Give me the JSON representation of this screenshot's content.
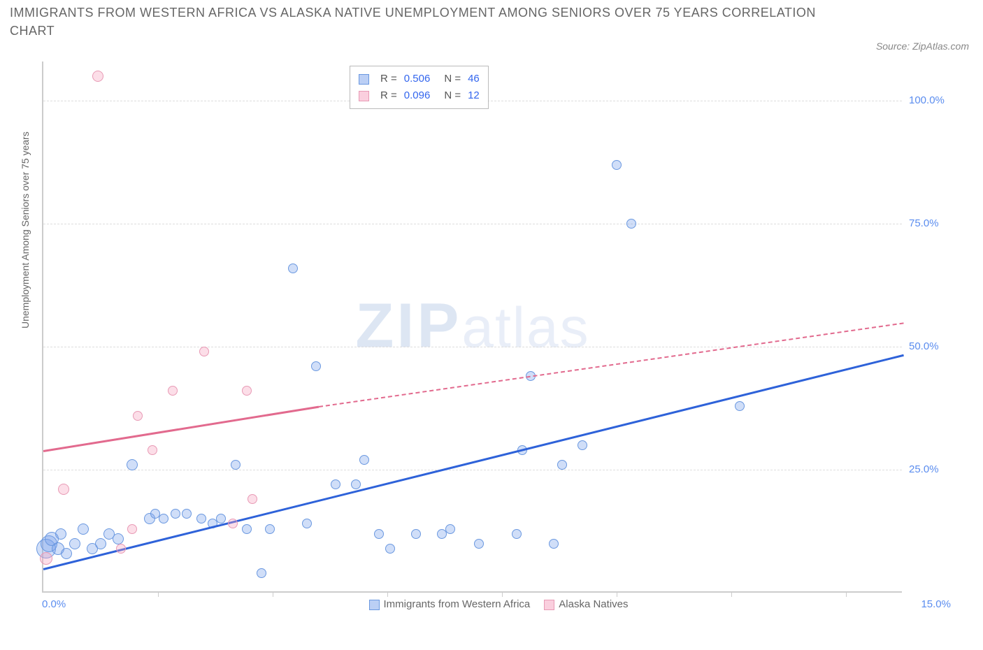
{
  "title_line1": "IMMIGRANTS FROM WESTERN AFRICA VS ALASKA NATIVE UNEMPLOYMENT AMONG SENIORS OVER 75 YEARS CORRELATION",
  "title_line2": "CHART",
  "source_text": "Source: ZipAtlas.com",
  "y_axis_label": "Unemployment Among Seniors over 75 years",
  "watermark_zip": "ZIP",
  "watermark_atlas": "atlas",
  "chart": {
    "type": "scatter",
    "xlim": [
      0,
      15
    ],
    "ylim": [
      0,
      108
    ],
    "y_ticks": [
      25,
      50,
      75,
      100
    ],
    "y_tick_labels": [
      "25.0%",
      "50.0%",
      "75.0%",
      "100.0%"
    ],
    "x_tick_positions": [
      2.0,
      4.0,
      6.0,
      8.0,
      10.0,
      12.0,
      14.0
    ],
    "x_left_label": "0.0%",
    "x_right_label": "15.0%",
    "background_color": "#ffffff",
    "grid_color": "#dddddd",
    "axis_color": "#cccccc",
    "watermark_color": "#e7ecf5",
    "series": [
      {
        "name": "Immigrants from Western Africa",
        "color_fill": "rgba(120,160,235,0.35)",
        "color_stroke": "#6a98e0",
        "trend_color": "#2e62d9",
        "R": "0.506",
        "N": "46",
        "trend": {
          "x1": 0.0,
          "y1": 5.0,
          "x2": 15.0,
          "y2": 48.5,
          "dashed": false
        },
        "points": [
          {
            "x": 0.05,
            "y": 9,
            "r": 14
          },
          {
            "x": 0.1,
            "y": 10,
            "r": 12
          },
          {
            "x": 0.15,
            "y": 11,
            "r": 10
          },
          {
            "x": 0.25,
            "y": 9,
            "r": 9
          },
          {
            "x": 0.3,
            "y": 12,
            "r": 8
          },
          {
            "x": 0.4,
            "y": 8,
            "r": 8
          },
          {
            "x": 0.55,
            "y": 10,
            "r": 8
          },
          {
            "x": 0.7,
            "y": 13,
            "r": 8
          },
          {
            "x": 0.85,
            "y": 9,
            "r": 8
          },
          {
            "x": 1.0,
            "y": 10,
            "r": 8
          },
          {
            "x": 1.15,
            "y": 12,
            "r": 8
          },
          {
            "x": 1.3,
            "y": 11,
            "r": 8
          },
          {
            "x": 1.55,
            "y": 26,
            "r": 8
          },
          {
            "x": 1.85,
            "y": 15,
            "r": 8
          },
          {
            "x": 1.95,
            "y": 16,
            "r": 7
          },
          {
            "x": 2.1,
            "y": 15,
            "r": 7
          },
          {
            "x": 2.3,
            "y": 16,
            "r": 7
          },
          {
            "x": 2.5,
            "y": 16,
            "r": 7
          },
          {
            "x": 2.75,
            "y": 15,
            "r": 7
          },
          {
            "x": 2.95,
            "y": 14,
            "r": 7
          },
          {
            "x": 3.1,
            "y": 15,
            "r": 7
          },
          {
            "x": 3.35,
            "y": 26,
            "r": 7
          },
          {
            "x": 3.55,
            "y": 13,
            "r": 7
          },
          {
            "x": 3.8,
            "y": 4,
            "r": 7
          },
          {
            "x": 3.95,
            "y": 13,
            "r": 7
          },
          {
            "x": 4.35,
            "y": 66,
            "r": 7
          },
          {
            "x": 4.6,
            "y": 14,
            "r": 7
          },
          {
            "x": 4.75,
            "y": 46,
            "r": 7
          },
          {
            "x": 5.1,
            "y": 22,
            "r": 7
          },
          {
            "x": 5.45,
            "y": 22,
            "r": 7
          },
          {
            "x": 5.6,
            "y": 27,
            "r": 7
          },
          {
            "x": 5.85,
            "y": 12,
            "r": 7
          },
          {
            "x": 6.05,
            "y": 9,
            "r": 7
          },
          {
            "x": 6.5,
            "y": 12,
            "r": 7
          },
          {
            "x": 6.95,
            "y": 12,
            "r": 7
          },
          {
            "x": 7.1,
            "y": 13,
            "r": 7
          },
          {
            "x": 7.6,
            "y": 10,
            "r": 7
          },
          {
            "x": 8.25,
            "y": 12,
            "r": 7
          },
          {
            "x": 8.35,
            "y": 29,
            "r": 7
          },
          {
            "x": 8.5,
            "y": 44,
            "r": 7
          },
          {
            "x": 8.9,
            "y": 10,
            "r": 7
          },
          {
            "x": 9.05,
            "y": 26,
            "r": 7
          },
          {
            "x": 9.4,
            "y": 30,
            "r": 7
          },
          {
            "x": 10.0,
            "y": 87,
            "r": 7
          },
          {
            "x": 10.25,
            "y": 75,
            "r": 7
          },
          {
            "x": 12.15,
            "y": 38,
            "r": 7
          }
        ]
      },
      {
        "name": "Alaska Natives",
        "color_fill": "rgba(245,160,190,0.35)",
        "color_stroke": "#e89ab5",
        "trend_color": "#e26a8e",
        "R": "0.096",
        "N": "12",
        "trend_solid": {
          "x1": 0.0,
          "y1": 29.0,
          "x2": 4.8,
          "y2": 38.0
        },
        "trend_dashed": {
          "x1": 4.8,
          "y1": 38.0,
          "x2": 15.0,
          "y2": 55.0
        },
        "points": [
          {
            "x": 0.05,
            "y": 7,
            "r": 9
          },
          {
            "x": 0.35,
            "y": 21,
            "r": 8
          },
          {
            "x": 0.95,
            "y": 105,
            "r": 8
          },
          {
            "x": 1.35,
            "y": 9,
            "r": 7
          },
          {
            "x": 1.55,
            "y": 13,
            "r": 7
          },
          {
            "x": 1.65,
            "y": 36,
            "r": 7
          },
          {
            "x": 1.9,
            "y": 29,
            "r": 7
          },
          {
            "x": 2.25,
            "y": 41,
            "r": 7
          },
          {
            "x": 2.8,
            "y": 49,
            "r": 7
          },
          {
            "x": 3.3,
            "y": 14,
            "r": 7
          },
          {
            "x": 3.55,
            "y": 41,
            "r": 7
          },
          {
            "x": 3.65,
            "y": 19,
            "r": 7
          }
        ]
      }
    ]
  },
  "stats_box": {
    "rows": [
      {
        "swatch_fill": "rgba(120,160,235,0.5)",
        "swatch_border": "#6a98e0",
        "R_label": "R =",
        "R": "0.506",
        "N_label": "N =",
        "N": "46"
      },
      {
        "swatch_fill": "rgba(245,160,190,0.5)",
        "swatch_border": "#e89ab5",
        "R_label": "R =",
        "R": "0.096",
        "N_label": "N =",
        "N": "12"
      }
    ]
  },
  "bottom_legend": {
    "items": [
      {
        "swatch_fill": "rgba(120,160,235,0.5)",
        "swatch_border": "#6a98e0",
        "label": "Immigrants from Western Africa"
      },
      {
        "swatch_fill": "rgba(245,160,190,0.5)",
        "swatch_border": "#e89ab5",
        "label": "Alaska Natives"
      }
    ]
  }
}
